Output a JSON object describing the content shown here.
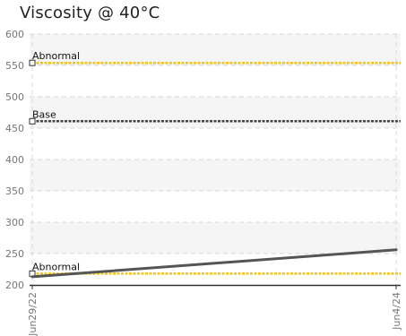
{
  "chart_data": {
    "type": "line",
    "title": "Viscosity @ 40°C",
    "xlabel": "",
    "ylabel": "",
    "ylim": [
      200,
      600
    ],
    "y_ticks": [
      200,
      250,
      300,
      350,
      400,
      450,
      500,
      550,
      600
    ],
    "x_ticks": [
      "Jun29/22",
      "Jun4/24"
    ],
    "grid": true,
    "series": [
      {
        "values": [
          213,
          256
        ]
      }
    ],
    "reference_lines": [
      {
        "label": "Abnormal",
        "value": 554,
        "color": "#f0c419"
      },
      {
        "label": "Base",
        "value": 461,
        "color": "#444444"
      },
      {
        "label": "Abnormal",
        "value": 218,
        "color": "#f0c419"
      }
    ],
    "colors": {
      "series": "#555555",
      "band": "#f5f5f5",
      "grid": "#d8d8d8",
      "axis": "#333333"
    }
  }
}
